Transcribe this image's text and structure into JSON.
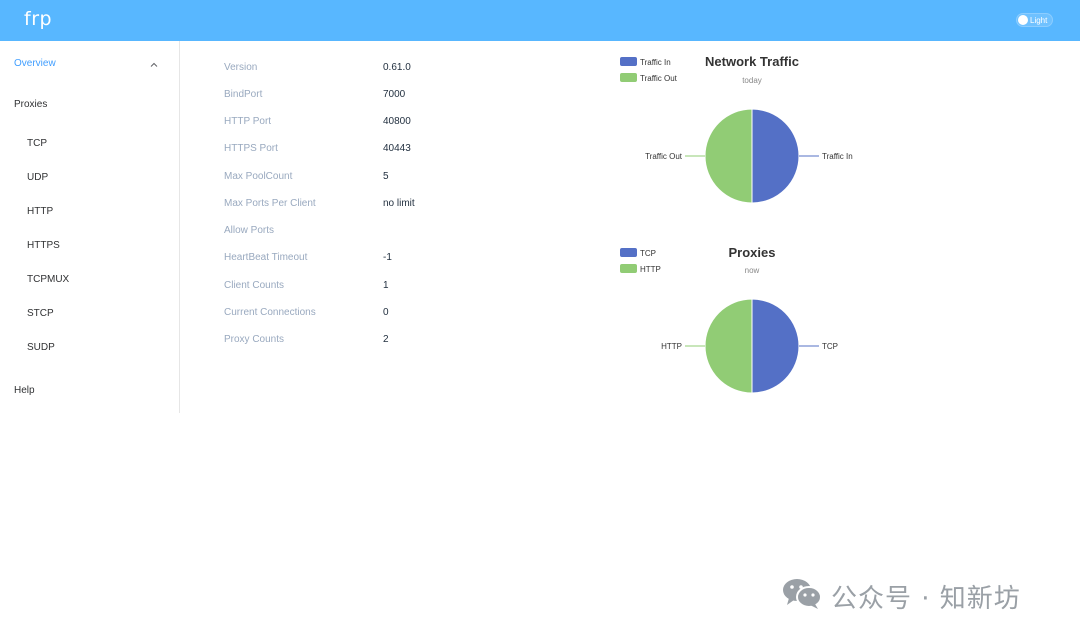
{
  "header": {
    "brand": "frp",
    "theme_label": "Light"
  },
  "sidebar": {
    "items": [
      {
        "label": "Overview",
        "active": true
      },
      {
        "label": "Proxies"
      },
      {
        "label": "TCP"
      },
      {
        "label": "UDP"
      },
      {
        "label": "HTTP"
      },
      {
        "label": "HTTPS"
      },
      {
        "label": "TCPMUX"
      },
      {
        "label": "STCP"
      },
      {
        "label": "SUDP"
      },
      {
        "label": "Help"
      }
    ]
  },
  "server_info": [
    {
      "label": "Version",
      "value": "0.61.0"
    },
    {
      "label": "BindPort",
      "value": "7000"
    },
    {
      "label": "HTTP Port",
      "value": "40800"
    },
    {
      "label": "HTTPS Port",
      "value": "40443"
    },
    {
      "label": "Max PoolCount",
      "value": "5"
    },
    {
      "label": "Max Ports Per Client",
      "value": "no limit"
    },
    {
      "label": "Allow Ports",
      "value": ""
    },
    {
      "label": "HeartBeat Timeout",
      "value": "-1"
    },
    {
      "label": "Client Counts",
      "value": "1"
    },
    {
      "label": "Current Connections",
      "value": "0"
    },
    {
      "label": "Proxy Counts",
      "value": "2"
    }
  ],
  "colors": {
    "header_bg": "#58b7ff",
    "series_blue": "#5470c6",
    "series_green": "#91cc75"
  },
  "chart_data": [
    {
      "type": "pie",
      "title": "Network Traffic",
      "subtitle": "today",
      "legend_position": "top-left",
      "series": [
        {
          "name": "Traffic In",
          "value": 1,
          "color": "#5470c6"
        },
        {
          "name": "Traffic Out",
          "value": 1,
          "color": "#91cc75"
        }
      ]
    },
    {
      "type": "pie",
      "title": "Proxies",
      "subtitle": "now",
      "legend_position": "top-left",
      "series": [
        {
          "name": "TCP",
          "value": 1,
          "color": "#5470c6"
        },
        {
          "name": "HTTP",
          "value": 1,
          "color": "#91cc75"
        }
      ]
    }
  ],
  "watermark": {
    "text": "公众号 · 知新坊"
  }
}
